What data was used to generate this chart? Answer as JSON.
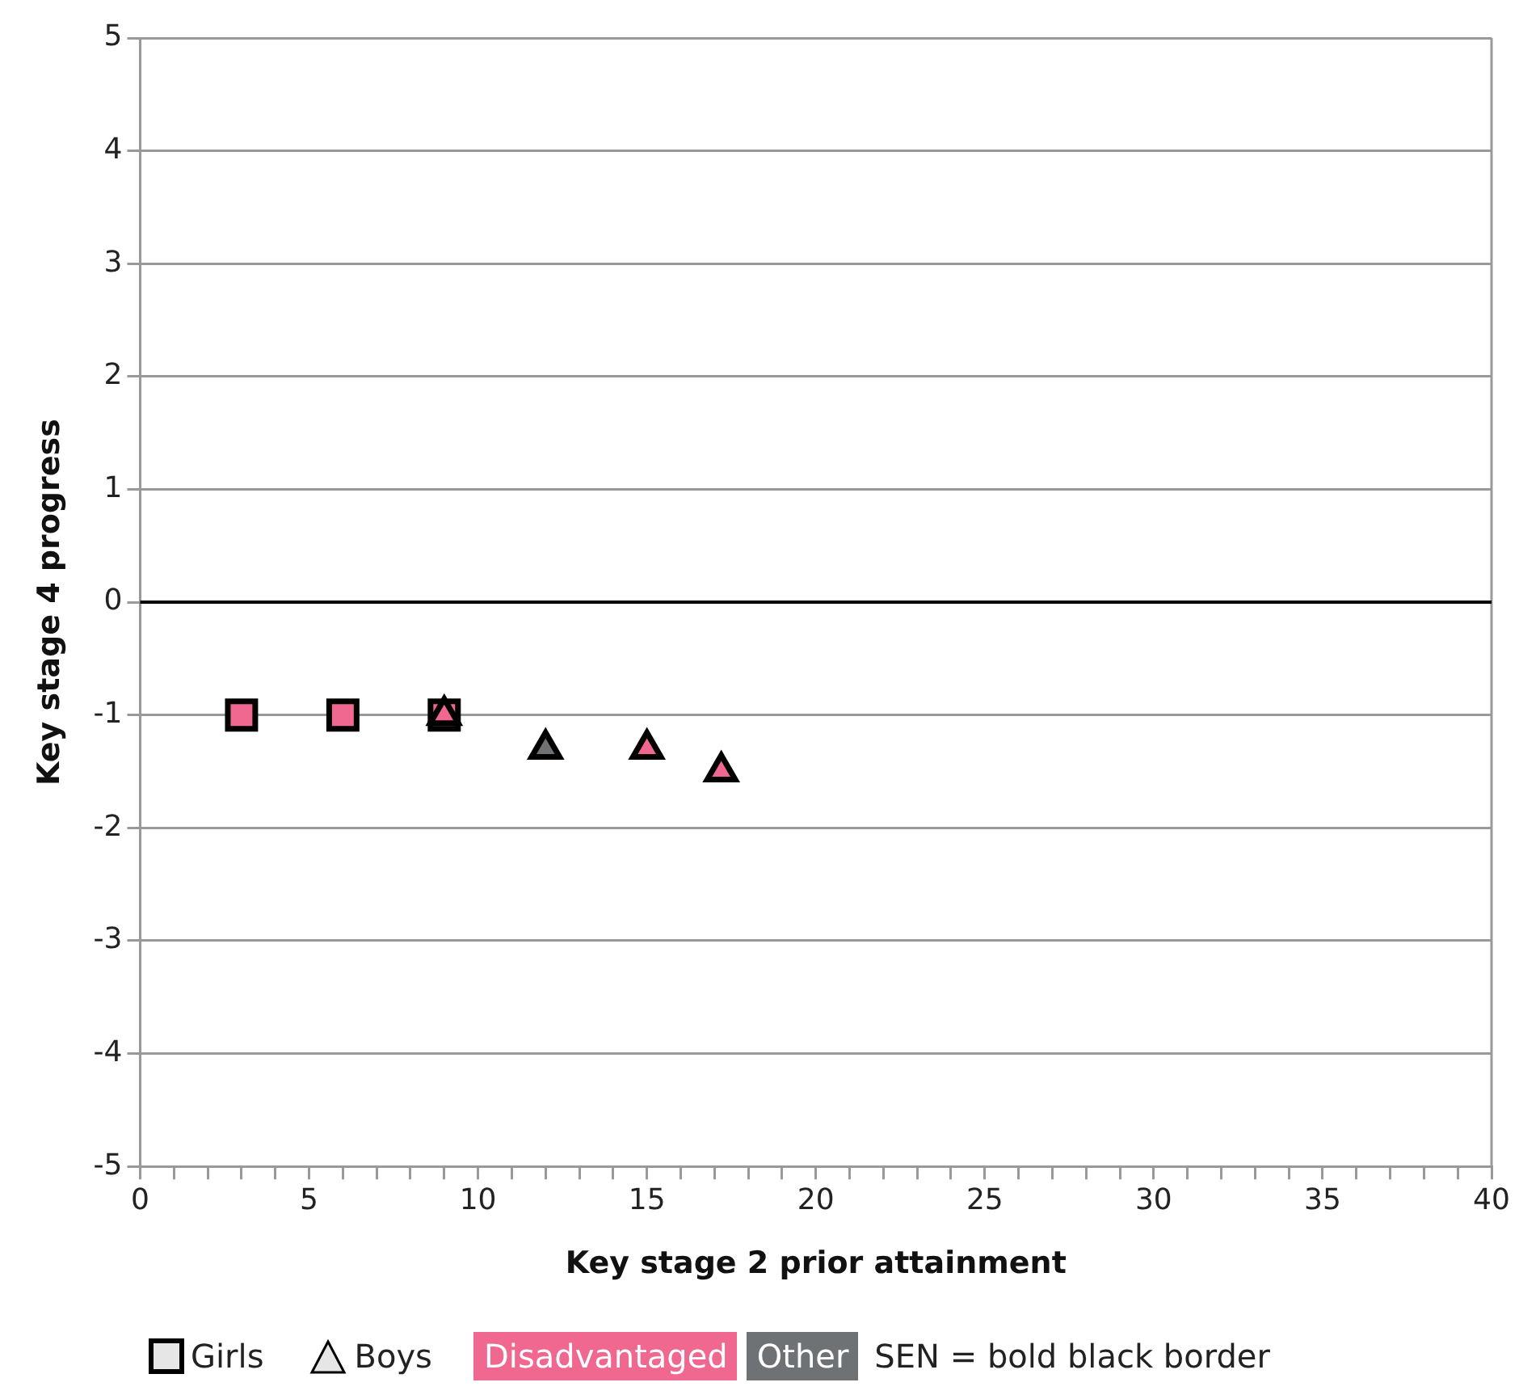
{
  "chart_data": {
    "type": "scatter",
    "xlabel": "Key stage 2 prior attainment",
    "ylabel": "Key stage 4 progress",
    "xlim": [
      0,
      40
    ],
    "ylim": [
      -5,
      5
    ],
    "xticks": [
      0,
      {
        "value": 1,
        "label": null
      },
      {
        "value": 2,
        "label": null
      },
      {
        "value": 3,
        "label": null
      },
      {
        "value": 4,
        "label": null
      },
      5,
      {
        "value": 6,
        "label": null
      },
      {
        "value": 7,
        "label": null
      },
      {
        "value": 8,
        "label": null
      },
      {
        "value": 9,
        "label": null
      },
      10,
      {
        "value": 11,
        "label": null
      },
      {
        "value": 12,
        "label": null
      },
      {
        "value": 13,
        "label": null
      },
      {
        "value": 14,
        "label": null
      },
      15,
      {
        "value": 16,
        "label": null
      },
      {
        "value": 17,
        "label": null
      },
      {
        "value": 18,
        "label": null
      },
      {
        "value": 19,
        "label": null
      },
      20,
      {
        "value": 21,
        "label": null
      },
      {
        "value": 22,
        "label": null
      },
      {
        "value": 23,
        "label": null
      },
      {
        "value": 24,
        "label": null
      },
      25,
      {
        "value": 26,
        "label": null
      },
      {
        "value": 27,
        "label": null
      },
      {
        "value": 28,
        "label": null
      },
      {
        "value": 29,
        "label": null
      },
      30,
      {
        "value": 31,
        "label": null
      },
      {
        "value": 32,
        "label": null
      },
      {
        "value": 33,
        "label": null
      },
      {
        "value": 34,
        "label": null
      },
      35,
      {
        "value": 36,
        "label": null
      },
      {
        "value": 37,
        "label": null
      },
      {
        "value": 38,
        "label": null
      },
      {
        "value": 39,
        "label": null
      },
      40
    ],
    "yticks": [
      -5,
      -4,
      -3,
      -2,
      -1,
      0,
      1,
      2,
      3,
      4,
      5
    ],
    "grid": "y",
    "ref_lines": [
      {
        "axis": "y",
        "value": 0,
        "color": "#000000"
      }
    ],
    "series": [
      {
        "color": "#f06890",
        "marker": "square",
        "x": [
          3,
          6,
          9
        ],
        "values": [
          -1,
          -1,
          -1
        ]
      },
      {
        "color": "#f06890",
        "marker": "triangle",
        "x": [
          9,
          15,
          17.2
        ],
        "values": [
          -1,
          -1.3,
          -1.5
        ]
      },
      {
        "color": "#6e7275",
        "marker": "triangle",
        "x": [
          12
        ],
        "values": [
          -1.3
        ]
      }
    ],
    "annotations": [
      "Girls",
      "Boys",
      "Disadvantaged",
      "Other",
      "SEN = bold black border"
    ]
  }
}
